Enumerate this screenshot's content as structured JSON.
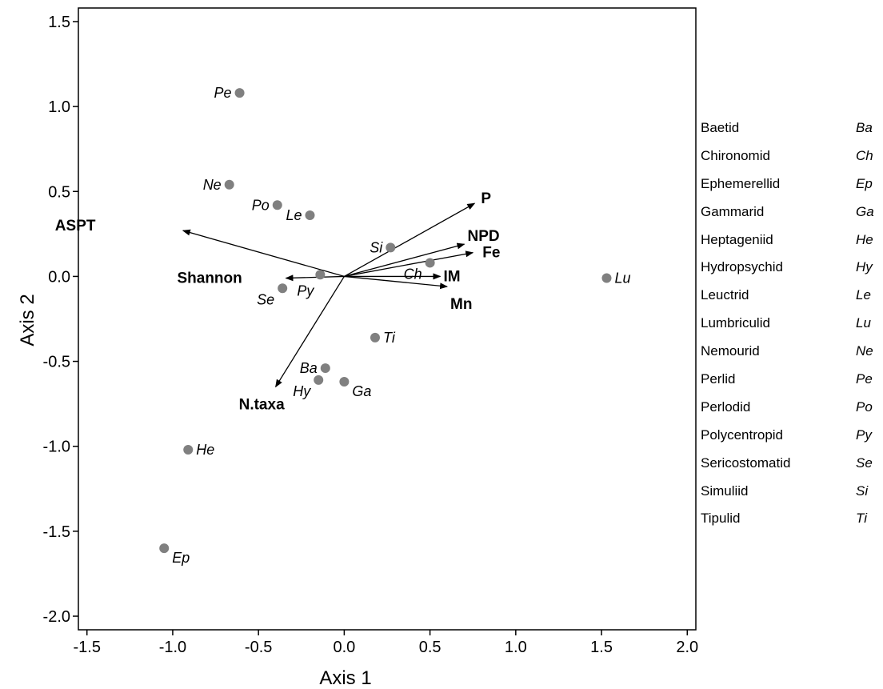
{
  "chart_data": {
    "type": "scatter",
    "xlabel": "Axis 1",
    "ylabel": "Axis 2",
    "xlim": [
      -1.55,
      2.05
    ],
    "ylim": [
      -2.08,
      1.58
    ],
    "xticks": [
      "-1.5",
      "-1.0",
      "-0.5",
      "0.0",
      "0.5",
      "1.0",
      "1.5",
      "2.0"
    ],
    "xtick_values": [
      -1.5,
      -1.0,
      -0.5,
      0.0,
      0.5,
      1.0,
      1.5,
      2.0
    ],
    "yticks": [
      "1.5",
      "1.0",
      "0.5",
      "0.0",
      "-0.5",
      "-1.0",
      "-1.5",
      "-2.0"
    ],
    "ytick_values": [
      1.5,
      1.0,
      0.5,
      0.0,
      -0.5,
      -1.0,
      -1.5,
      -2.0
    ],
    "grid": false,
    "point_color": "#808080",
    "points": [
      {
        "label": "Pe",
        "x": -0.61,
        "y": 1.08,
        "pos": "left"
      },
      {
        "label": "Ne",
        "x": -0.67,
        "y": 0.54,
        "pos": "left"
      },
      {
        "label": "Po",
        "x": -0.39,
        "y": 0.42,
        "pos": "left"
      },
      {
        "label": "Le",
        "x": -0.2,
        "y": 0.36,
        "pos": "left"
      },
      {
        "label": "Si",
        "x": 0.27,
        "y": 0.17,
        "pos": "left"
      },
      {
        "label": "Ch",
        "x": 0.5,
        "y": 0.08,
        "pos": "left-below"
      },
      {
        "label": "Py",
        "x": -0.14,
        "y": 0.01,
        "pos": "below-left"
      },
      {
        "label": "Se",
        "x": -0.36,
        "y": -0.07,
        "pos": "left-below"
      },
      {
        "label": "Lu",
        "x": 1.53,
        "y": -0.01,
        "pos": "right"
      },
      {
        "label": "Ti",
        "x": 0.18,
        "y": -0.36,
        "pos": "right"
      },
      {
        "label": "Ba",
        "x": -0.11,
        "y": -0.54,
        "pos": "left"
      },
      {
        "label": "Hy",
        "x": -0.15,
        "y": -0.61,
        "pos": "left-below"
      },
      {
        "label": "Ga",
        "x": 0.0,
        "y": -0.62,
        "pos": "right-below"
      },
      {
        "label": "He",
        "x": -0.91,
        "y": -1.02,
        "pos": "right"
      },
      {
        "label": "Ep",
        "x": -1.05,
        "y": -1.6,
        "pos": "right-below"
      }
    ],
    "vectors": [
      {
        "label": "ASPT",
        "x": -0.94,
        "y": 0.27
      },
      {
        "label": "P",
        "x": 0.76,
        "y": 0.43
      },
      {
        "label": "NPD",
        "x": 0.7,
        "y": 0.19
      },
      {
        "label": "Fe",
        "x": 0.75,
        "y": 0.14
      },
      {
        "label": "IM",
        "x": 0.56,
        "y": 0.0
      },
      {
        "label": "Mn",
        "x": 0.6,
        "y": -0.06
      },
      {
        "label": "Shannon",
        "x": -0.34,
        "y": -0.01
      },
      {
        "label": "N.taxa",
        "x": -0.4,
        "y": -0.65
      }
    ]
  },
  "legend": [
    {
      "name": "Baetid",
      "code": "Ba"
    },
    {
      "name": "Chironomid",
      "code": "Ch"
    },
    {
      "name": "Ephemerellid",
      "code": "Ep"
    },
    {
      "name": "Gammarid",
      "code": "Ga"
    },
    {
      "name": "Heptageniid",
      "code": "He"
    },
    {
      "name": "Hydropsychid",
      "code": "Hy"
    },
    {
      "name": "Leuctrid",
      "code": "Le"
    },
    {
      "name": "Lumbriculid",
      "code": "Lu"
    },
    {
      "name": "Nemourid",
      "code": "Ne"
    },
    {
      "name": "Perlid",
      "code": "Pe"
    },
    {
      "name": "Perlodid",
      "code": "Po"
    },
    {
      "name": "Polycentropid",
      "code": "Py"
    },
    {
      "name": "Sericostomatid",
      "code": "Se"
    },
    {
      "name": "Simuliid",
      "code": "Si"
    },
    {
      "name": "Tipulid",
      "code": "Ti"
    }
  ]
}
